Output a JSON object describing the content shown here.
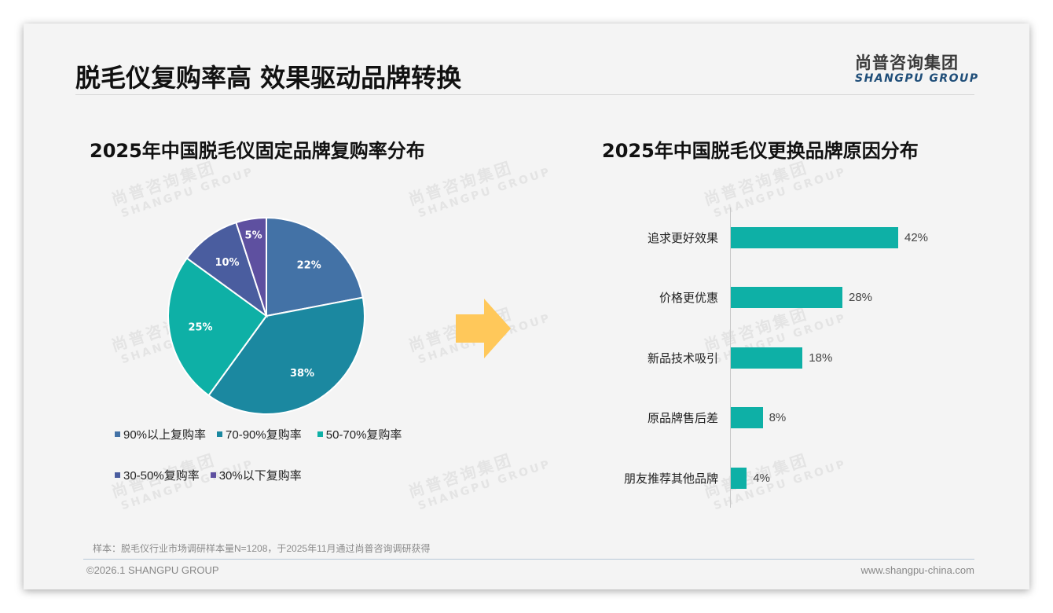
{
  "header": {
    "title": "脱毛仪复购率高 效果驱动品牌转换",
    "logo_cn": "尚普咨询集团",
    "logo_en": "SHANGPU GROUP"
  },
  "watermark": {
    "cn": "尚普咨询集团",
    "en": "SHANGPU GROUP"
  },
  "colors": {
    "p90": "#4372a6",
    "p70": "#1b88a0",
    "p50": "#0eb0a6",
    "p30": "#4a5d9f",
    "p0": "#5e50a0",
    "bar": "#0eb0a6",
    "arrow": "#ffc85a"
  },
  "chart_data": [
    {
      "type": "pie",
      "title": "2025年中国脱毛仪固定品牌复购率分布",
      "categories": [
        "90%以上复购率",
        "70-90%复购率",
        "50-70%复购率",
        "30-50%复购率",
        "30%以下复购率"
      ],
      "values": [
        22,
        38,
        25,
        10,
        5
      ],
      "data_labels": [
        "22%",
        "38%",
        "25%",
        "10%",
        "5%"
      ],
      "start_angle": "12 o'clock, clockwise",
      "legend_position": "bottom"
    },
    {
      "type": "bar",
      "orientation": "horizontal",
      "title": "2025年中国脱毛仪更换品牌原因分布",
      "categories": [
        "追求更好效果",
        "价格更优惠",
        "新品技术吸引",
        "原品牌售后差",
        "朋友推荐其他品牌"
      ],
      "values": [
        42,
        28,
        18,
        8,
        4
      ],
      "data_labels": [
        "42%",
        "28%",
        "18%",
        "8%",
        "4%"
      ],
      "xlabel": "",
      "ylabel": "",
      "grid": false
    }
  ],
  "legend": {
    "row1": [
      "90%以上复购率",
      "70-90%复购率",
      "50-70%复购率"
    ],
    "row2": [
      "30-50%复购率",
      "30%以下复购率"
    ]
  },
  "footer": {
    "note": "样本：脱毛仪行业市场调研样本量N=1208，于2025年11月通过尚普咨询调研获得",
    "copyright": "©2026.1 SHANGPU GROUP",
    "website": "www.shangpu-china.com"
  }
}
